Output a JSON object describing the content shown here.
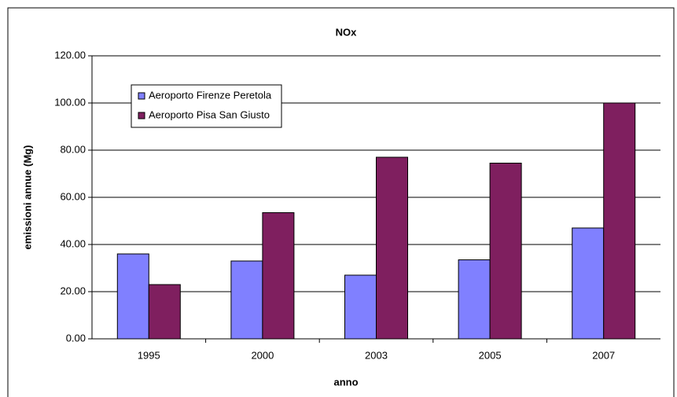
{
  "chart_data": {
    "type": "bar",
    "title": "NOx",
    "x_label": "anno",
    "y_label": "emissioni annue (Mg)",
    "categories": [
      "1995",
      "2000",
      "2003",
      "2005",
      "2007"
    ],
    "series": [
      {
        "name": "Aeroporto Firenze Peretola",
        "color": "#8080ff",
        "values": [
          36,
          33,
          27,
          33.5,
          47
        ]
      },
      {
        "name": "Aeroporto Pisa San Giusto",
        "color": "#7f1f5f",
        "values": [
          23,
          53.5,
          77,
          74.5,
          100
        ]
      }
    ],
    "ylim": [
      0,
      120
    ],
    "yticks": [
      {
        "value": 0,
        "label": "0.00"
      },
      {
        "value": 20,
        "label": "20.00"
      },
      {
        "value": 40,
        "label": "40.00"
      },
      {
        "value": 60,
        "label": "60.00"
      },
      {
        "value": 80,
        "label": "80.00"
      },
      {
        "value": 100,
        "label": "100.00"
      },
      {
        "value": 120,
        "label": "120.00"
      }
    ],
    "grid": true
  }
}
